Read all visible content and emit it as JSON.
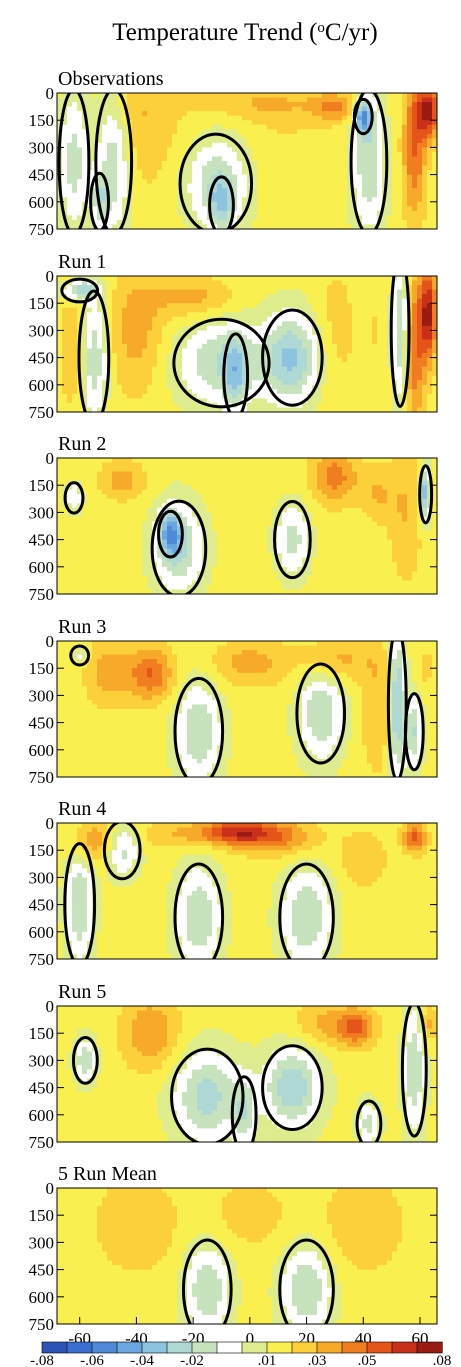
{
  "chart_data": {
    "type": "heatmap",
    "title": "Temperature Trend (°C/yr)",
    "title_main": "Temperature Trend (",
    "title_sup": "o",
    "title_tail": "C/yr)",
    "xlabel": "",
    "ylabel": "",
    "x_ticks": [
      -60,
      -40,
      -20,
      0,
      20,
      40,
      60
    ],
    "x_tick_labels": [
      "-60",
      "-40",
      "-20",
      "0",
      "20",
      "40",
      "60"
    ],
    "xlim": [
      -68,
      66
    ],
    "y_ticks": [
      0,
      150,
      300,
      450,
      600,
      750
    ],
    "y_tick_labels": [
      "0",
      "150",
      "300",
      "450",
      "600",
      "750"
    ],
    "ylim": [
      0,
      750
    ],
    "y_inverted": true,
    "contour_level_highlighted": 0,
    "colorbar": {
      "levels": [
        -0.08,
        -0.07,
        -0.06,
        -0.05,
        -0.04,
        -0.03,
        -0.02,
        -0.01,
        0,
        0.01,
        0.02,
        0.03,
        0.04,
        0.05,
        0.06,
        0.07,
        0.08
      ],
      "colors": [
        "#2c54b8",
        "#3a6fcf",
        "#4f8ad8",
        "#6aa6df",
        "#8cc3e0",
        "#aed8d4",
        "#c6e3bd",
        "#ffffff",
        "#dfec8e",
        "#f9ef4e",
        "#fbd03a",
        "#f7a92a",
        "#f07d20",
        "#e55418",
        "#c8301a",
        "#9a1a14"
      ],
      "tick_labels": [
        "-.08",
        "-.06",
        "-.04",
        "-.02",
        ".01",
        ".03",
        ".05",
        ".08"
      ],
      "tick_values": [
        -0.08,
        -0.06,
        -0.04,
        -0.02,
        0.01,
        0.03,
        0.05,
        0.08
      ]
    },
    "panels": [
      {
        "name": "Observations",
        "blobs": [
          {
            "x": -62,
            "y": 380,
            "rx": 5,
            "ry": 380,
            "v": -0.015
          },
          {
            "x": -48,
            "y": 380,
            "rx": 6,
            "ry": 380,
            "v": -0.02
          },
          {
            "x": -53,
            "y": 600,
            "rx": 3,
            "ry": 150,
            "v": -0.01
          },
          {
            "x": -40,
            "y": 120,
            "rx": 10,
            "ry": 380,
            "v": 0.03
          },
          {
            "x": -25,
            "y": 300,
            "rx": 12,
            "ry": 450,
            "v": 0.02
          },
          {
            "x": -12,
            "y": 500,
            "rx": 12,
            "ry": 260,
            "v": -0.02
          },
          {
            "x": -10,
            "y": 620,
            "rx": 4,
            "ry": 150,
            "v": -0.01
          },
          {
            "x": 5,
            "y": 60,
            "rx": 22,
            "ry": 100,
            "v": 0.03
          },
          {
            "x": 12,
            "y": 350,
            "rx": 14,
            "ry": 350,
            "v": 0.02
          },
          {
            "x": 30,
            "y": 80,
            "rx": 8,
            "ry": 80,
            "v": 0.04
          },
          {
            "x": 42,
            "y": 380,
            "rx": 6,
            "ry": 380,
            "v": -0.02
          },
          {
            "x": 40,
            "y": 130,
            "rx": 3,
            "ry": 90,
            "v": -0.04
          },
          {
            "x": 50,
            "y": 350,
            "rx": 6,
            "ry": 300,
            "v": 0.015
          },
          {
            "x": 58,
            "y": 300,
            "rx": 4,
            "ry": 400,
            "v": 0.05
          },
          {
            "x": 63,
            "y": 100,
            "rx": 4,
            "ry": 150,
            "v": 0.07
          }
        ]
      },
      {
        "name": "Run 1",
        "blobs": [
          {
            "x": -62,
            "y": 380,
            "rx": 5,
            "ry": 380,
            "v": 0.03
          },
          {
            "x": -55,
            "y": 450,
            "rx": 5,
            "ry": 350,
            "v": -0.02
          },
          {
            "x": -60,
            "y": 80,
            "rx": 6,
            "ry": 60,
            "v": -0.03
          },
          {
            "x": -40,
            "y": 300,
            "rx": 10,
            "ry": 350,
            "v": 0.035
          },
          {
            "x": -20,
            "y": 120,
            "rx": 14,
            "ry": 110,
            "v": 0.035
          },
          {
            "x": -10,
            "y": 480,
            "rx": 16,
            "ry": 230,
            "v": -0.02
          },
          {
            "x": -5,
            "y": 550,
            "rx": 4,
            "ry": 220,
            "v": -0.01
          },
          {
            "x": 15,
            "y": 450,
            "rx": 10,
            "ry": 250,
            "v": -0.03
          },
          {
            "x": 30,
            "y": 300,
            "rx": 8,
            "ry": 380,
            "v": 0.025
          },
          {
            "x": 45,
            "y": 300,
            "rx": 5,
            "ry": 350,
            "v": 0.02
          },
          {
            "x": 53,
            "y": 300,
            "rx": 3,
            "ry": 400,
            "v": -0.025
          },
          {
            "x": 58,
            "y": 400,
            "rx": 4,
            "ry": 400,
            "v": 0.05
          },
          {
            "x": 63,
            "y": 200,
            "rx": 3,
            "ry": 250,
            "v": 0.07
          }
        ]
      },
      {
        "name": "Run 2",
        "blobs": [
          {
            "x": -62,
            "y": 220,
            "rx": 3,
            "ry": 80,
            "v": -0.01
          },
          {
            "x": -45,
            "y": 120,
            "rx": 8,
            "ry": 110,
            "v": 0.035
          },
          {
            "x": -25,
            "y": 500,
            "rx": 9,
            "ry": 250,
            "v": -0.02
          },
          {
            "x": -28,
            "y": 420,
            "rx": 4,
            "ry": 120,
            "v": -0.03
          },
          {
            "x": 0,
            "y": 100,
            "rx": 12,
            "ry": 120,
            "v": 0.02
          },
          {
            "x": 15,
            "y": 450,
            "rx": 6,
            "ry": 200,
            "v": -0.015
          },
          {
            "x": 30,
            "y": 100,
            "rx": 8,
            "ry": 150,
            "v": 0.045
          },
          {
            "x": 45,
            "y": 200,
            "rx": 6,
            "ry": 150,
            "v": 0.03
          },
          {
            "x": 55,
            "y": 300,
            "rx": 6,
            "ry": 380,
            "v": 0.03
          },
          {
            "x": 62,
            "y": 200,
            "rx": 2,
            "ry": 150,
            "v": -0.04
          }
        ]
      },
      {
        "name": "Run 3",
        "blobs": [
          {
            "x": -62,
            "y": 80,
            "rx": 5,
            "ry": 80,
            "v": 0.02
          },
          {
            "x": -60,
            "y": 80,
            "rx": 3,
            "ry": 50,
            "v": -0.01
          },
          {
            "x": -50,
            "y": 180,
            "rx": 8,
            "ry": 180,
            "v": 0.035
          },
          {
            "x": -35,
            "y": 180,
            "rx": 8,
            "ry": 150,
            "v": 0.05
          },
          {
            "x": -18,
            "y": 500,
            "rx": 8,
            "ry": 280,
            "v": -0.02
          },
          {
            "x": 0,
            "y": 120,
            "rx": 14,
            "ry": 120,
            "v": 0.035
          },
          {
            "x": 5,
            "y": 300,
            "rx": 18,
            "ry": 150,
            "v": 0.015
          },
          {
            "x": 25,
            "y": 400,
            "rx": 8,
            "ry": 260,
            "v": -0.02
          },
          {
            "x": 30,
            "y": 100,
            "rx": 12,
            "ry": 120,
            "v": 0.035
          },
          {
            "x": 45,
            "y": 350,
            "rx": 6,
            "ry": 380,
            "v": 0.03
          },
          {
            "x": 52,
            "y": 350,
            "rx": 3,
            "ry": 400,
            "v": -0.035
          },
          {
            "x": 58,
            "y": 500,
            "rx": 3,
            "ry": 200,
            "v": -0.02
          },
          {
            "x": 62,
            "y": 150,
            "rx": 3,
            "ry": 100,
            "v": 0.025
          }
        ]
      },
      {
        "name": "Run 4",
        "blobs": [
          {
            "x": -60,
            "y": 450,
            "rx": 5,
            "ry": 320,
            "v": -0.02
          },
          {
            "x": -55,
            "y": 100,
            "rx": 8,
            "ry": 120,
            "v": 0.04
          },
          {
            "x": -45,
            "y": 150,
            "rx": 6,
            "ry": 150,
            "v": -0.015
          },
          {
            "x": -25,
            "y": 60,
            "rx": 14,
            "ry": 80,
            "v": 0.03
          },
          {
            "x": -5,
            "y": 50,
            "rx": 12,
            "ry": 70,
            "v": 0.06
          },
          {
            "x": 10,
            "y": 80,
            "rx": 14,
            "ry": 100,
            "v": 0.045
          },
          {
            "x": -18,
            "y": 520,
            "rx": 8,
            "ry": 280,
            "v": -0.02
          },
          {
            "x": 20,
            "y": 520,
            "rx": 9,
            "ry": 280,
            "v": -0.02
          },
          {
            "x": 40,
            "y": 200,
            "rx": 8,
            "ry": 150,
            "v": 0.03
          },
          {
            "x": 58,
            "y": 80,
            "rx": 4,
            "ry": 80,
            "v": 0.055
          },
          {
            "x": 62,
            "y": 350,
            "rx": 4,
            "ry": 350,
            "v": 0.015
          }
        ]
      },
      {
        "name": "Run 5",
        "blobs": [
          {
            "x": -58,
            "y": 300,
            "rx": 4,
            "ry": 120,
            "v": -0.02
          },
          {
            "x": -35,
            "y": 150,
            "rx": 10,
            "ry": 200,
            "v": 0.04
          },
          {
            "x": -15,
            "y": 500,
            "rx": 12,
            "ry": 250,
            "v": -0.025
          },
          {
            "x": -2,
            "y": 600,
            "rx": 4,
            "ry": 200,
            "v": -0.01
          },
          {
            "x": 15,
            "y": 450,
            "rx": 10,
            "ry": 220,
            "v": -0.03
          },
          {
            "x": 28,
            "y": 100,
            "rx": 12,
            "ry": 120,
            "v": 0.035
          },
          {
            "x": 38,
            "y": 120,
            "rx": 6,
            "ry": 100,
            "v": 0.045
          },
          {
            "x": 42,
            "y": 650,
            "rx": 4,
            "ry": 120,
            "v": -0.015
          },
          {
            "x": 58,
            "y": 350,
            "rx": 4,
            "ry": 350,
            "v": -0.02
          },
          {
            "x": 63,
            "y": 100,
            "rx": 3,
            "ry": 100,
            "v": 0.035
          }
        ]
      },
      {
        "name": "5 Run Mean",
        "blobs": [
          {
            "x": -40,
            "y": 200,
            "rx": 14,
            "ry": 260,
            "v": 0.03
          },
          {
            "x": 0,
            "y": 150,
            "rx": 16,
            "ry": 200,
            "v": 0.025
          },
          {
            "x": 40,
            "y": 200,
            "rx": 14,
            "ry": 260,
            "v": 0.03
          },
          {
            "x": -15,
            "y": 560,
            "rx": 8,
            "ry": 260,
            "v": -0.02
          },
          {
            "x": 20,
            "y": 560,
            "rx": 9,
            "ry": 260,
            "v": -0.02
          },
          {
            "x": 60,
            "y": 250,
            "rx": 5,
            "ry": 250,
            "v": 0.015
          }
        ]
      }
    ]
  }
}
